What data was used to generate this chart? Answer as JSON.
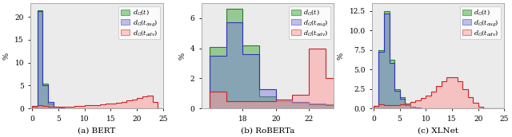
{
  "panels": [
    {
      "title": "(a) BERT",
      "ylabel": "%",
      "xlim": [
        -0.3,
        25
      ],
      "ylim": [
        0,
        23
      ],
      "yticks": [
        0,
        5,
        10,
        15,
        20
      ],
      "xticks": [
        0,
        5,
        10,
        15,
        20,
        25
      ],
      "series": [
        {
          "label": "$d_G(t)$",
          "face": "#4daf4a",
          "edge": "#2a7a2a",
          "alpha": 0.55,
          "bins": [
            0,
            1,
            2,
            3,
            4,
            5,
            6,
            7,
            8,
            9,
            10,
            11,
            12,
            13,
            14,
            15,
            16,
            17,
            18,
            19,
            20,
            21,
            22,
            23,
            24,
            25
          ],
          "heights": [
            0.3,
            21.5,
            5.5,
            1.0,
            0.3,
            0.15,
            0.08,
            0.06,
            0.05,
            0.04,
            0.04,
            0.04,
            0.04,
            0.04,
            0.04,
            0.04,
            0.04,
            0.04,
            0.04,
            0.04,
            0.04,
            0.04,
            0.04,
            0.02,
            0.0
          ]
        },
        {
          "label": "$d_G(t_{aug})$",
          "face": "#7777dd",
          "edge": "#3333bb",
          "alpha": 0.45,
          "bins": [
            0,
            1,
            2,
            3,
            4,
            5,
            6,
            7,
            8,
            9,
            10,
            11,
            12,
            13,
            14,
            15,
            16,
            17,
            18,
            19,
            20,
            21,
            22,
            23,
            24,
            25
          ],
          "heights": [
            0.3,
            21.2,
            5.0,
            1.5,
            0.4,
            0.15,
            0.08,
            0.05,
            0.04,
            0.04,
            0.04,
            0.04,
            0.04,
            0.04,
            0.04,
            0.04,
            0.04,
            0.04,
            0.04,
            0.04,
            0.04,
            0.04,
            0.04,
            0.0,
            0.0
          ]
        },
        {
          "label": "$d_G(t_{adv})$",
          "face": "#ff9999",
          "edge": "#cc2222",
          "alpha": 0.5,
          "bins": [
            0,
            1,
            2,
            3,
            4,
            5,
            6,
            7,
            8,
            9,
            10,
            11,
            12,
            13,
            14,
            15,
            16,
            17,
            18,
            19,
            20,
            21,
            22,
            23,
            24,
            25
          ],
          "heights": [
            0.5,
            0.8,
            0.6,
            0.4,
            0.4,
            0.4,
            0.4,
            0.45,
            0.5,
            0.6,
            0.65,
            0.7,
            0.8,
            0.9,
            1.0,
            1.1,
            1.2,
            1.4,
            1.7,
            2.0,
            2.3,
            2.6,
            2.9,
            1.5,
            0.05
          ]
        }
      ]
    },
    {
      "title": "(b) RoBERTa",
      "ylabel": "%",
      "xlim": [
        15.5,
        23.5
      ],
      "ylim": [
        0,
        7
      ],
      "yticks": [
        0,
        2,
        4,
        6
      ],
      "xticks": [
        18,
        20,
        22
      ],
      "series": [
        {
          "label": "$d_G(t)$",
          "face": "#4daf4a",
          "edge": "#2a7a2a",
          "alpha": 0.55,
          "bins": [
            16,
            17,
            18,
            19,
            20,
            21,
            22,
            23,
            24
          ],
          "heights": [
            4.1,
            6.6,
            4.2,
            0.8,
            0.5,
            0.4,
            0.35,
            0.3
          ]
        },
        {
          "label": "$d_G(t_{aug})$",
          "face": "#7777dd",
          "edge": "#3333bb",
          "alpha": 0.45,
          "bins": [
            16,
            17,
            18,
            19,
            20,
            21,
            22,
            23,
            24
          ],
          "heights": [
            3.5,
            5.7,
            3.6,
            1.3,
            0.6,
            0.45,
            0.3,
            0.2
          ]
        },
        {
          "label": "$d_G(t_{adv})$",
          "face": "#ff9999",
          "edge": "#cc2222",
          "alpha": 0.5,
          "bins": [
            16,
            17,
            18,
            19,
            20,
            21,
            22,
            23,
            24
          ],
          "heights": [
            1.1,
            0.5,
            0.5,
            0.5,
            0.6,
            0.9,
            4.0,
            2.0
          ]
        }
      ]
    },
    {
      "title": "(c) XLNet",
      "ylabel": "%",
      "xlim": [
        -0.3,
        25
      ],
      "ylim": [
        0,
        13.5
      ],
      "yticks": [
        0,
        2.5,
        5.0,
        7.5,
        10.0,
        12.5
      ],
      "xticks": [
        0,
        5,
        10,
        15,
        20,
        25
      ],
      "series": [
        {
          "label": "$d_G(t)$",
          "face": "#4daf4a",
          "edge": "#2a7a2a",
          "alpha": 0.55,
          "bins": [
            0,
            1,
            2,
            3,
            4,
            5,
            6,
            7,
            8,
            9,
            10,
            11,
            12,
            13,
            14,
            15,
            16,
            17,
            18,
            19,
            20,
            21,
            22,
            23,
            24,
            25
          ],
          "heights": [
            0.3,
            7.5,
            12.5,
            6.2,
            2.5,
            1.4,
            0.5,
            0.2,
            0.1,
            0.07,
            0.05,
            0.05,
            0.05,
            0.05,
            0.05,
            0.04,
            0.04,
            0.04,
            0.04,
            0.04,
            0.04,
            0.0,
            0.0,
            0.0,
            0.0
          ]
        },
        {
          "label": "$d_G(t_{aug})$",
          "face": "#7777dd",
          "edge": "#3333bb",
          "alpha": 0.45,
          "bins": [
            0,
            1,
            2,
            3,
            4,
            5,
            6,
            7,
            8,
            9,
            10,
            11,
            12,
            13,
            14,
            15,
            16,
            17,
            18,
            19,
            20,
            21,
            22,
            23,
            24,
            25
          ],
          "heights": [
            0.3,
            7.3,
            12.2,
            5.8,
            2.3,
            1.2,
            0.45,
            0.18,
            0.08,
            0.06,
            0.05,
            0.05,
            0.05,
            0.05,
            0.05,
            0.04,
            0.04,
            0.04,
            0.04,
            0.04,
            0.0,
            0.0,
            0.0,
            0.0,
            0.0
          ]
        },
        {
          "label": "$d_G(t_{adv})$",
          "face": "#ff9999",
          "edge": "#cc2222",
          "alpha": 0.5,
          "bins": [
            0,
            1,
            2,
            3,
            4,
            5,
            6,
            7,
            8,
            9,
            10,
            11,
            12,
            13,
            14,
            15,
            16,
            17,
            18,
            19,
            20,
            21,
            22,
            23,
            24,
            25
          ],
          "heights": [
            0.3,
            0.5,
            0.4,
            0.4,
            0.4,
            0.5,
            0.6,
            0.8,
            1.0,
            1.3,
            1.7,
            2.2,
            2.9,
            3.5,
            4.0,
            4.0,
            3.5,
            2.5,
            1.5,
            0.7,
            0.2,
            0.05,
            0.0,
            0.0,
            0.0
          ]
        }
      ]
    }
  ],
  "bg_color": "#ebebeb",
  "legend_fontsize": 5.8,
  "tick_labelsize": 6.5
}
